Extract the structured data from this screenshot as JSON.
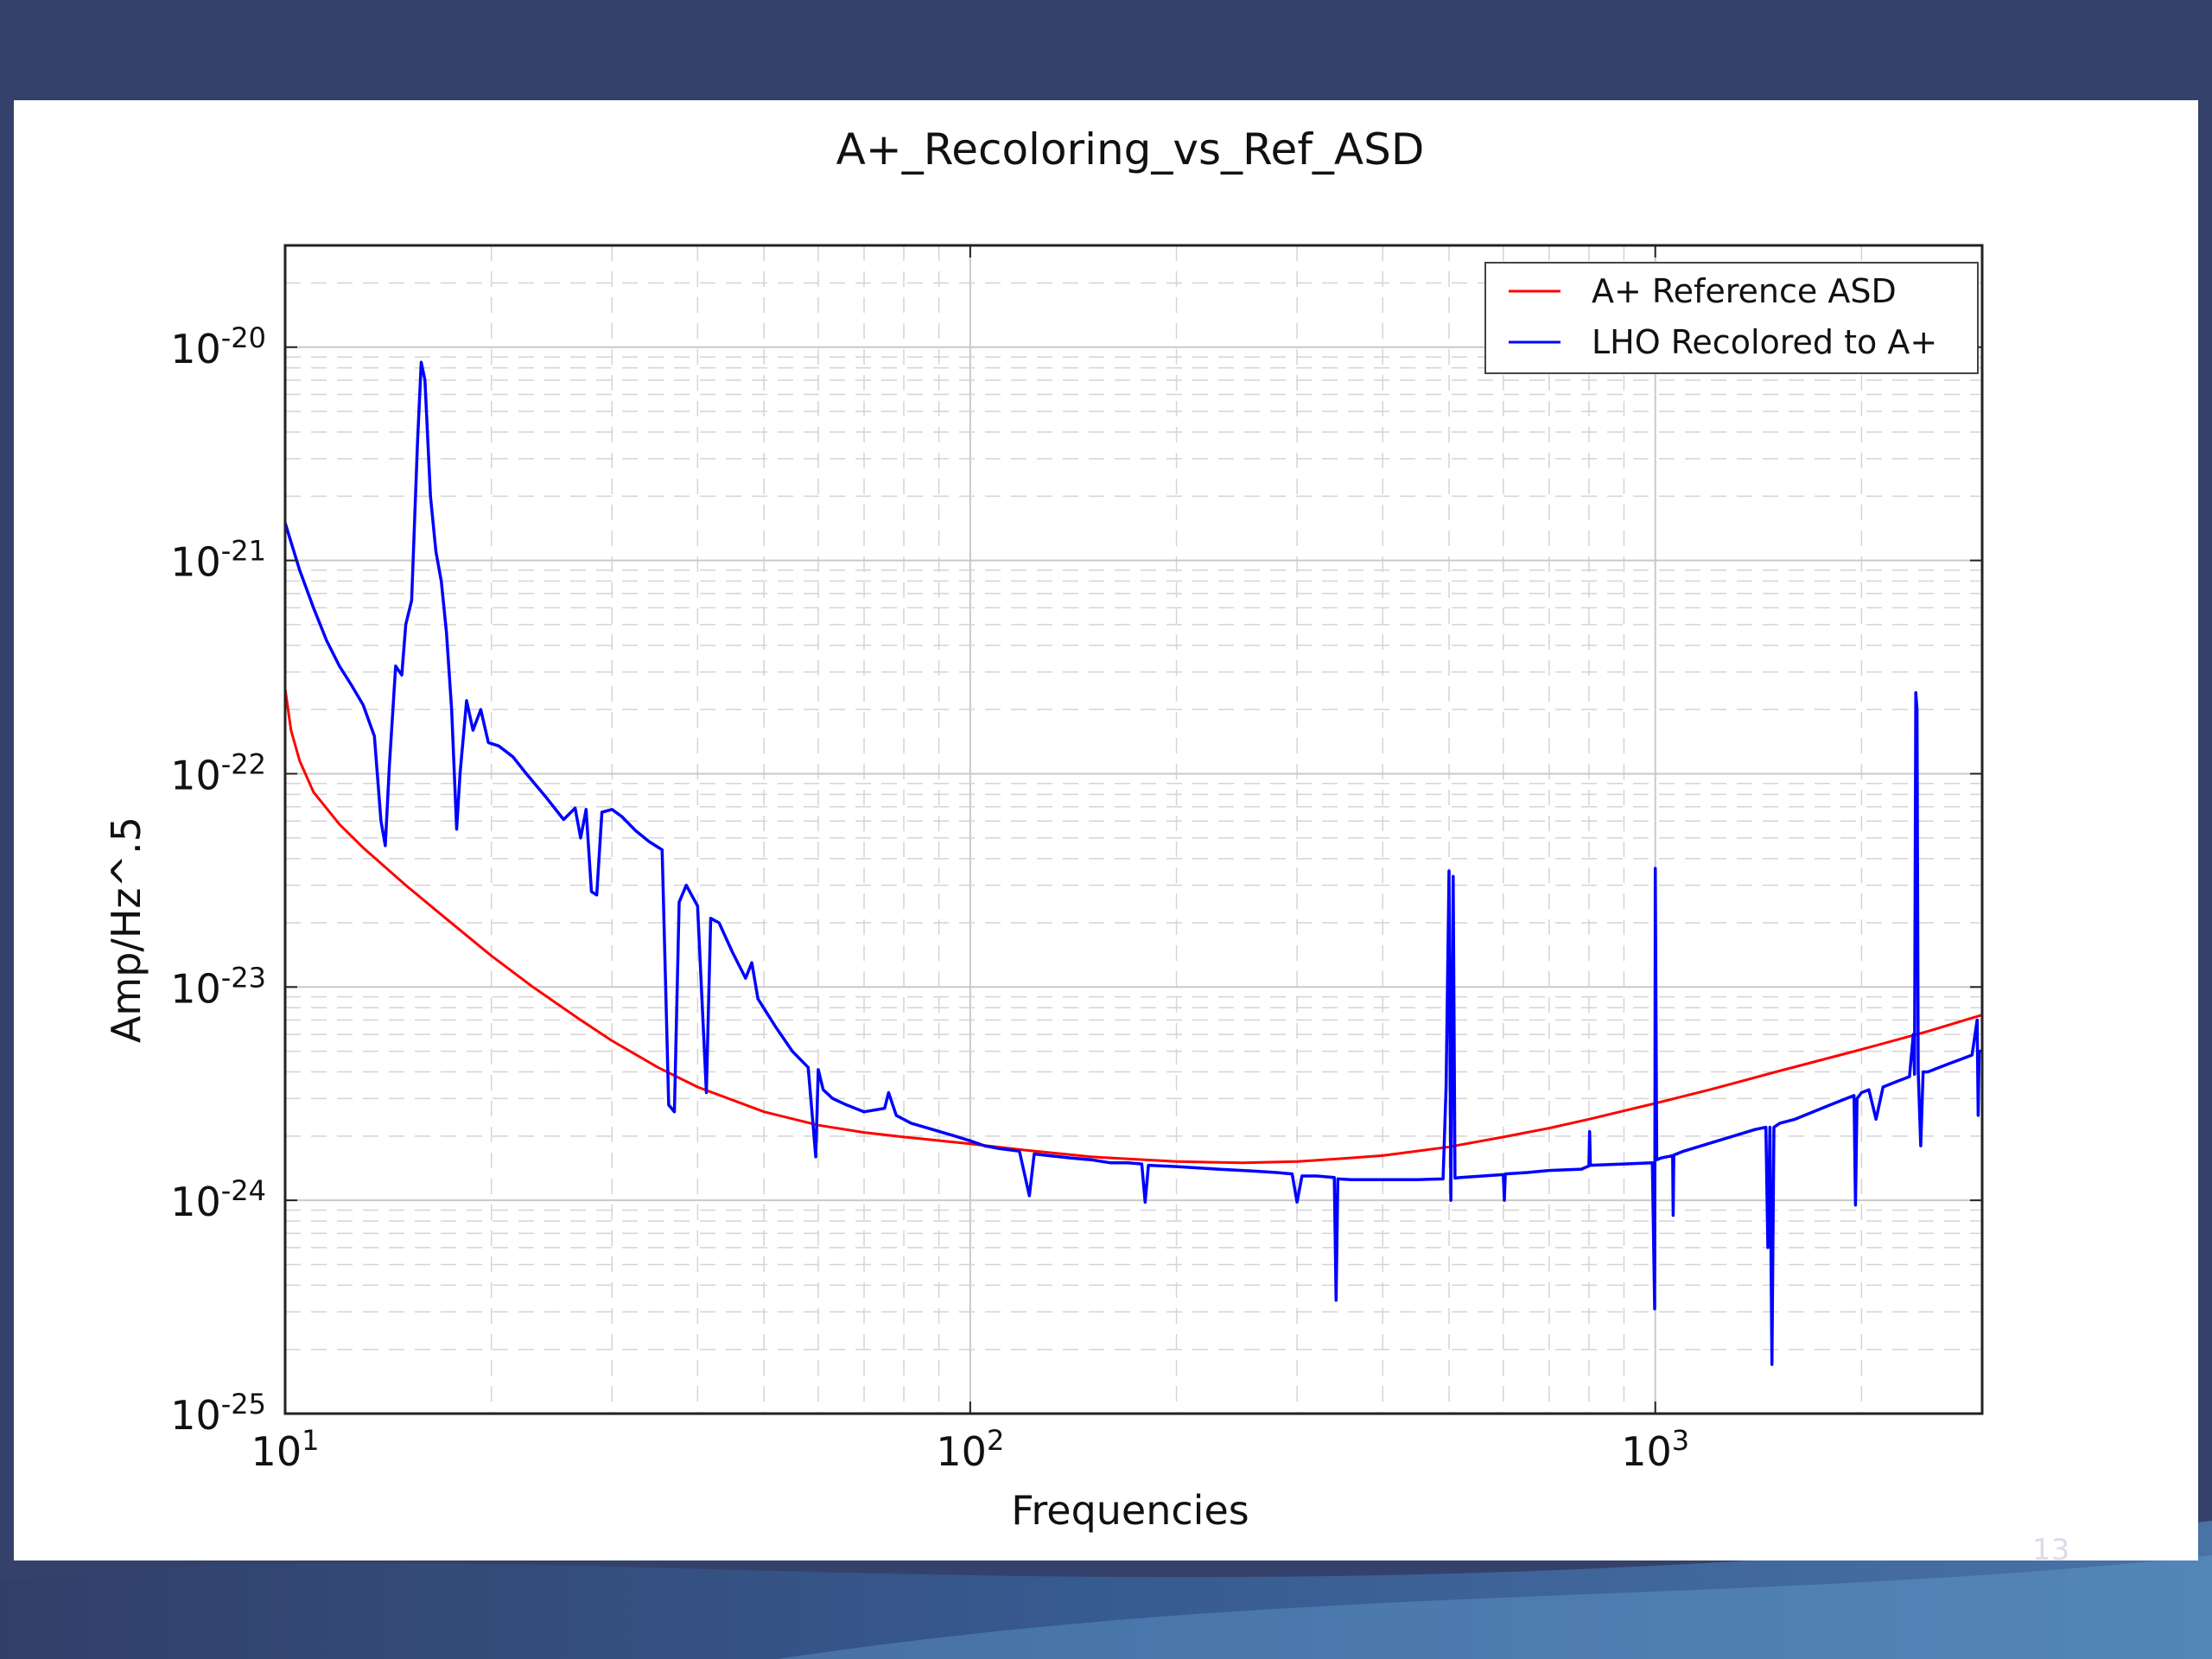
{
  "slide": {
    "page_number": "13",
    "colors": {
      "background": "#34426b",
      "panel": "#ffffff",
      "wave": "#3a6fb0"
    }
  },
  "chart_data": {
    "type": "line",
    "title": "A+_Recoloring_vs_Ref_ASD",
    "xlabel": "Frequencies",
    "ylabel": "Amp/Hz^.5",
    "xscale": "log",
    "yscale": "log",
    "xlim": [
      10,
      3000
    ],
    "ylim": [
      1e-25,
      3e-20
    ],
    "grid": true,
    "legend_position": "top-right",
    "x_ticks": [
      {
        "base": "10",
        "exp": "1",
        "value": 10
      },
      {
        "base": "10",
        "exp": "2",
        "value": 100
      },
      {
        "base": "10",
        "exp": "3",
        "value": 1000
      }
    ],
    "y_ticks": [
      {
        "base": "10",
        "exp": "-20",
        "value": 1e-20
      },
      {
        "base": "10",
        "exp": "-21",
        "value": 1e-21
      },
      {
        "base": "10",
        "exp": "-22",
        "value": 1e-22
      },
      {
        "base": "10",
        "exp": "-23",
        "value": 1e-23
      },
      {
        "base": "10",
        "exp": "-24",
        "value": 1e-24
      },
      {
        "base": "10",
        "exp": "-25",
        "value": 1e-25
      }
    ],
    "series": [
      {
        "name": "A+ Reference ASD",
        "color": "#ff0000",
        "x": [
          10,
          10.2,
          10.5,
          11,
          12,
          13,
          15,
          17,
          20,
          23,
          27,
          30,
          35,
          40,
          50,
          60,
          70,
          80,
          100,
          120,
          150,
          200,
          250,
          300,
          350,
          400,
          500,
          600,
          700,
          800,
          1000,
          1200,
          1500,
          2000,
          2500,
          3000
        ],
        "y": [
          2.5e-22,
          1.6e-22,
          1.15e-22,
          8.2e-23,
          5.8e-23,
          4.5e-23,
          3e-23,
          2.15e-23,
          1.4e-23,
          1e-23,
          7e-24,
          5.6e-24,
          4.2e-24,
          3.4e-24,
          2.6e-24,
          2.25e-24,
          2.08e-24,
          1.98e-24,
          1.84e-24,
          1.72e-24,
          1.6e-24,
          1.52e-24,
          1.5e-24,
          1.52e-24,
          1.57e-24,
          1.62e-24,
          1.78e-24,
          1.98e-24,
          2.18e-24,
          2.4e-24,
          2.85e-24,
          3.3e-24,
          4e-24,
          5.1e-24,
          6.2e-24,
          7.4e-24
        ]
      },
      {
        "name": "LHO Recolored to A+",
        "color": "#0000ff",
        "x": [
          10,
          10.5,
          11,
          11.5,
          12,
          12.5,
          13,
          13.5,
          13.8,
          14,
          14.2,
          14.5,
          14.8,
          15,
          15.3,
          15.6,
          15.8,
          16,
          16.3,
          16.6,
          16.9,
          17.2,
          17.5,
          17.8,
          18,
          18.4,
          18.8,
          19.3,
          19.8,
          20.5,
          21.5,
          22.5,
          24,
          25.5,
          26.5,
          27,
          27.5,
          28,
          28.5,
          29,
          30,
          31,
          32.5,
          34,
          35.5,
          36.3,
          37,
          37.6,
          38.5,
          40,
          41.2,
          41.8,
          43,
          45,
          47,
          48,
          49,
          52,
          55,
          58,
          59.5,
          60,
          61,
          63,
          66,
          70,
          75,
          76,
          78,
          82,
          88,
          95,
          100,
          105,
          110,
          118,
          122,
          124,
          130,
          140,
          150,
          160,
          170,
          178,
          180,
          182,
          200,
          230,
          260,
          280,
          295,
          300,
          305,
          320,
          340,
          342,
          344,
          360,
          400,
          450,
          490,
          495,
          500,
          503,
          507,
          510,
          520,
          560,
          600,
          602,
          604,
          650,
          700,
          780,
          800,
          802,
          804,
          900,
          990,
          998,
          1000,
          1005,
          1020,
          1040,
          1060,
          1062,
          1064,
          1100,
          1200,
          1300,
          1400,
          1450,
          1460,
          1470,
          1480,
          1490,
          1520,
          1600,
          1700,
          1800,
          1900,
          1950,
          1960,
          1970,
          2000,
          2050,
          2100,
          2150,
          2200,
          2250,
          2300,
          2350,
          2380,
          2390,
          2400,
          2410,
          2420,
          2440,
          2460,
          2500,
          2600,
          2700,
          2800,
          2900,
          2950,
          2960,
          2970,
          3000
        ],
        "y": [
          1.5e-21,
          9e-22,
          6e-22,
          4.2e-22,
          3.2e-22,
          2.6e-22,
          2.1e-22,
          1.5e-22,
          6e-23,
          4.6e-23,
          1.1e-22,
          3.2e-22,
          2.9e-22,
          5e-22,
          6.5e-22,
          3.5e-21,
          8.5e-21,
          7e-21,
          2e-21,
          1.1e-21,
          8e-22,
          4.6e-22,
          2e-22,
          5.5e-23,
          1e-22,
          2.2e-22,
          1.6e-22,
          2e-22,
          1.4e-22,
          1.35e-22,
          1.2e-22,
          1e-22,
          7.8e-23,
          6.1e-23,
          6.9e-23,
          5e-23,
          6.8e-23,
          2.8e-23,
          2.7e-23,
          6.6e-23,
          6.8e-23,
          6.3e-23,
          5.4e-23,
          4.8e-23,
          4.4e-23,
          2.8e-24,
          2.6e-24,
          2.5e-23,
          3e-23,
          2.4e-23,
          3.2e-24,
          2.1e-23,
          2e-23,
          1.45e-23,
          1.1e-23,
          1.3e-23,
          8.8e-24,
          6.5e-24,
          5e-24,
          4.2e-24,
          1.6e-24,
          4.1e-24,
          3.3e-24,
          3e-24,
          2.8e-24,
          2.6e-24,
          2.7e-24,
          3.2e-24,
          2.5e-24,
          2.3e-24,
          2.15e-24,
          2e-24,
          1.9e-24,
          1.8e-24,
          1.75e-24,
          1.7e-24,
          1.05e-24,
          1.65e-24,
          1.62e-24,
          1.58e-24,
          1.55e-24,
          1.5e-24,
          1.5e-24,
          1.48e-24,
          9.8e-25,
          1.46e-24,
          1.44e-24,
          1.4e-24,
          1.37e-24,
          1.35e-24,
          1.33e-24,
          9.8e-25,
          1.3e-24,
          1.3e-24,
          1.28e-24,
          3.4e-25,
          1.26e-24,
          1.25e-24,
          1.25e-24,
          1.25e-24,
          1.26e-24,
          3.4e-24,
          3.5e-23,
          1e-24,
          3.3e-23,
          1.27e-24,
          1.28e-24,
          1.3e-24,
          1.32e-24,
          1e-24,
          1.33e-24,
          1.35e-24,
          1.38e-24,
          1.4e-24,
          1.45e-24,
          2.1e-24,
          1.46e-24,
          1.48e-24,
          1.5e-24,
          3.1e-25,
          3.6e-23,
          1.55e-24,
          1.58e-24,
          1.6e-24,
          1.62e-24,
          8.5e-25,
          1.63e-24,
          1.7e-24,
          1.85e-24,
          2e-24,
          2.15e-24,
          2.2e-24,
          6e-25,
          2.2e-24,
          1.7e-25,
          2.2e-24,
          2.3e-24,
          2.4e-24,
          2.6e-24,
          2.8e-24,
          3e-24,
          3.1e-24,
          9.5e-25,
          3e-24,
          3.2e-24,
          3.3e-24,
          2.4e-24,
          3.4e-24,
          3.5e-24,
          3.6e-24,
          3.7e-24,
          3.8e-24,
          6e-24,
          3.9e-24,
          2.4e-22,
          2e-22,
          4e-24,
          1.8e-24,
          4e-24,
          4e-24,
          4.2e-24,
          4.4e-24,
          4.6e-24,
          4.8e-24,
          7e-24,
          2.5e-24,
          5e-24,
          5e-24
        ]
      }
    ]
  }
}
